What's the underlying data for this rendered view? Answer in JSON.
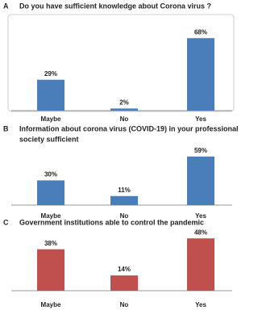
{
  "chart_data": [
    {
      "type": "bar",
      "panel": "A",
      "title": [
        "Do you have sufficient knowledge about Corona virus ?"
      ],
      "categories": [
        "Maybe",
        "No",
        "Yes"
      ],
      "values": [
        29,
        2,
        68
      ],
      "value_labels": [
        "29%",
        "2%",
        "68%"
      ],
      "color": "#4a7ebb"
    },
    {
      "type": "bar",
      "panel": "B",
      "title": [
        "Information about corona virus (COVID-19) in your professional",
        "society sufficient"
      ],
      "categories": [
        "Maybe",
        "No",
        "Yes"
      ],
      "values": [
        30,
        11,
        59
      ],
      "value_labels": [
        "30%",
        "11%",
        "59%"
      ],
      "color": "#4a7ebb"
    },
    {
      "type": "bar",
      "panel": "C",
      "title": [
        "Government institutions able to control the pandemic"
      ],
      "categories": [
        "Maybe",
        "No",
        "Yes"
      ],
      "values": [
        38,
        14,
        48
      ],
      "value_labels": [
        "38%",
        "14%",
        "48%"
      ],
      "color": "#c0504d"
    }
  ]
}
